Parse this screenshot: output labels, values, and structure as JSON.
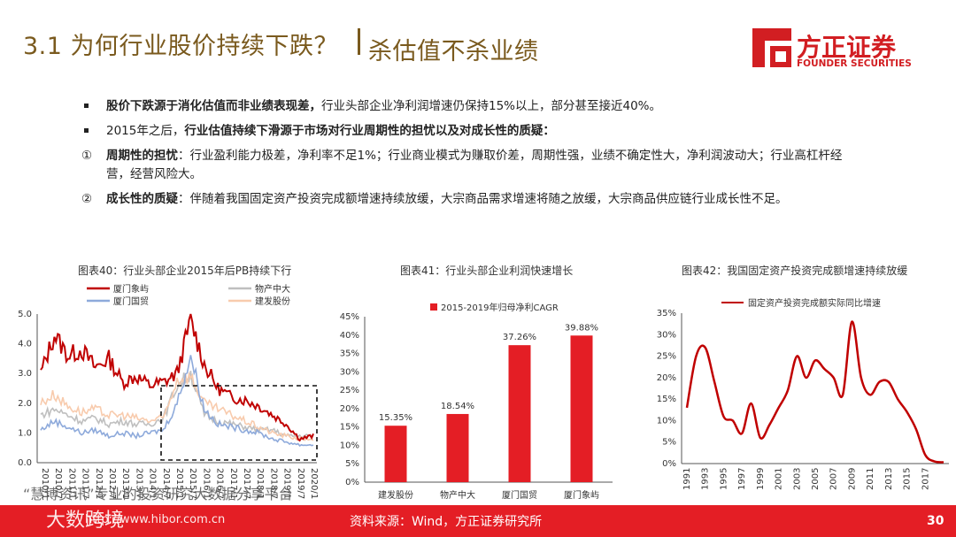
{
  "header": {
    "title": "3.1 为何行业股价持续下跌？",
    "subtitle": "杀估值不杀业绩",
    "logo_cn": "方正证券",
    "logo_en": "FOUNDER SECURITIES"
  },
  "bullets": [
    {
      "marker": "■",
      "bold": "股价下跌源于消化估值而非业绩表现差，",
      "text": "行业头部企业净利润增速仍保持15%以上，部分甚至接近40%。"
    },
    {
      "marker": "■",
      "pre": "2015年之后，",
      "bold": "行业估值持续下滑源于市场对行业周期性的担忧以及对成长性的质疑：",
      "text": ""
    },
    {
      "marker": "①",
      "bold": "周期性的担忧",
      "text": "：行业盈利能力极差，净利率不足1%；行业商业模式为赚取价差，周期性强，业绩不确定性大，净利润波动大；行业高杠杆经营，经营风险大。"
    },
    {
      "marker": "②",
      "bold": "成长性的质疑",
      "text": "：伴随着我国固定资产投资完成额增速持续放缓，大宗商品需求增速将随之放缓，大宗商品供应链行业成长性不足。"
    }
  ],
  "footer": {
    "source": "资料来源：Wind，方正证券研究所",
    "page": "30",
    "watermark1": "“慧博资讯”专业的投资研究大数据分享平台",
    "watermark2": "http://www.hibor.com.cn",
    "watermark3": "大数跨境"
  },
  "chart_data": [
    {
      "type": "line",
      "title": "图表40：行业头部企业2015年后PB持续下行",
      "ylim": [
        0,
        5
      ],
      "y_ticks": [
        "0.0",
        "1.0",
        "2.0",
        "3.0",
        "4.0",
        "5.0"
      ],
      "x_ticks": [
        "2010/1",
        "2010/7",
        "2011/1",
        "2011/7",
        "2012/1",
        "2012/7",
        "2013/1",
        "2013/7",
        "2014/1",
        "2014/7",
        "2015/1",
        "2015/7",
        "2016/1",
        "2016/7",
        "2017/1",
        "2017/7",
        "2018/1",
        "2018/7",
        "2019/1",
        "2019/7",
        "2020/1"
      ],
      "annotation": "dashed box highlighting 2015 onwards",
      "series": [
        {
          "name": "厦门象屿",
          "color": "#c00000",
          "values": [
            3.0,
            4.3,
            3.6,
            3.8,
            3.2,
            3.5,
            2.7,
            2.9,
            2.6,
            2.7,
            3.0,
            4.8,
            3.3,
            2.5,
            2.2,
            2.1,
            1.9,
            1.6,
            1.3,
            0.8,
            0.9
          ]
        },
        {
          "name": "物产中大",
          "color": "#bfbfbf",
          "values": [
            1.6,
            1.8,
            1.6,
            1.4,
            1.5,
            1.3,
            1.4,
            1.3,
            1.3,
            1.5,
            2.6,
            3.0,
            1.6,
            1.4,
            1.3,
            1.2,
            1.1,
            1.1,
            0.9,
            0.9,
            0.9
          ]
        },
        {
          "name": "厦门国贸",
          "color": "#8eaadb",
          "values": [
            1.1,
            1.4,
            1.2,
            1.0,
            1.1,
            0.9,
            1.0,
            0.9,
            1.0,
            1.1,
            2.0,
            3.6,
            1.8,
            1.3,
            1.2,
            1.1,
            1.0,
            0.8,
            0.7,
            0.6,
            0.6
          ]
        },
        {
          "name": "建发股份",
          "color": "#f8cbad",
          "values": [
            2.0,
            2.3,
            1.9,
            1.7,
            1.8,
            1.6,
            1.6,
            1.5,
            1.4,
            1.5,
            2.8,
            2.9,
            2.0,
            1.8,
            1.6,
            1.4,
            1.2,
            1.0,
            0.9,
            0.8,
            0.8
          ]
        }
      ]
    },
    {
      "type": "bar",
      "title": "图表41：行业头部企业利润快速增长",
      "legend": "2015-2019年归母净利CAGR",
      "categories": [
        "建发股份",
        "物产中大",
        "厦门国贸",
        "厦门象屿"
      ],
      "values": [
        15.35,
        18.54,
        37.26,
        39.88
      ],
      "labels": [
        "15.35%",
        "18.54%",
        "37.26%",
        "39.88%"
      ],
      "ylim": [
        0,
        45
      ],
      "y_ticks": [
        "0%",
        "5%",
        "10%",
        "15%",
        "20%",
        "25%",
        "30%",
        "35%",
        "40%",
        "45%"
      ],
      "color": "#e41e25"
    },
    {
      "type": "line",
      "title": "图表42：我国固定资产投资完成额增速持续放缓",
      "legend": "固定资产投资完成额实际同比增速",
      "ylim": [
        0,
        35
      ],
      "y_ticks": [
        "0%",
        "5%",
        "10%",
        "15%",
        "20%",
        "25%",
        "30%",
        "35%"
      ],
      "x": [
        1991,
        1992,
        1993,
        1994,
        1995,
        1996,
        1997,
        1998,
        1999,
        2000,
        2001,
        2002,
        2003,
        2004,
        2005,
        2006,
        2007,
        2008,
        2009,
        2010,
        2011,
        2012,
        2013,
        2014,
        2015,
        2016,
        2017,
        2018,
        2019
      ],
      "x_ticks": [
        "1991",
        "1993",
        "1995",
        "1997",
        "1999",
        "2001",
        "2003",
        "2005",
        "2007",
        "2009",
        "2011",
        "2013",
        "2015",
        "2017"
      ],
      "values": [
        13,
        25,
        27,
        19,
        11,
        10,
        7,
        14,
        6,
        9,
        13,
        17,
        25,
        20,
        24,
        22,
        20,
        16,
        33,
        20,
        16,
        19,
        19,
        15,
        12,
        8,
        2,
        0.5,
        0.3
      ],
      "color": "#c00000"
    }
  ]
}
